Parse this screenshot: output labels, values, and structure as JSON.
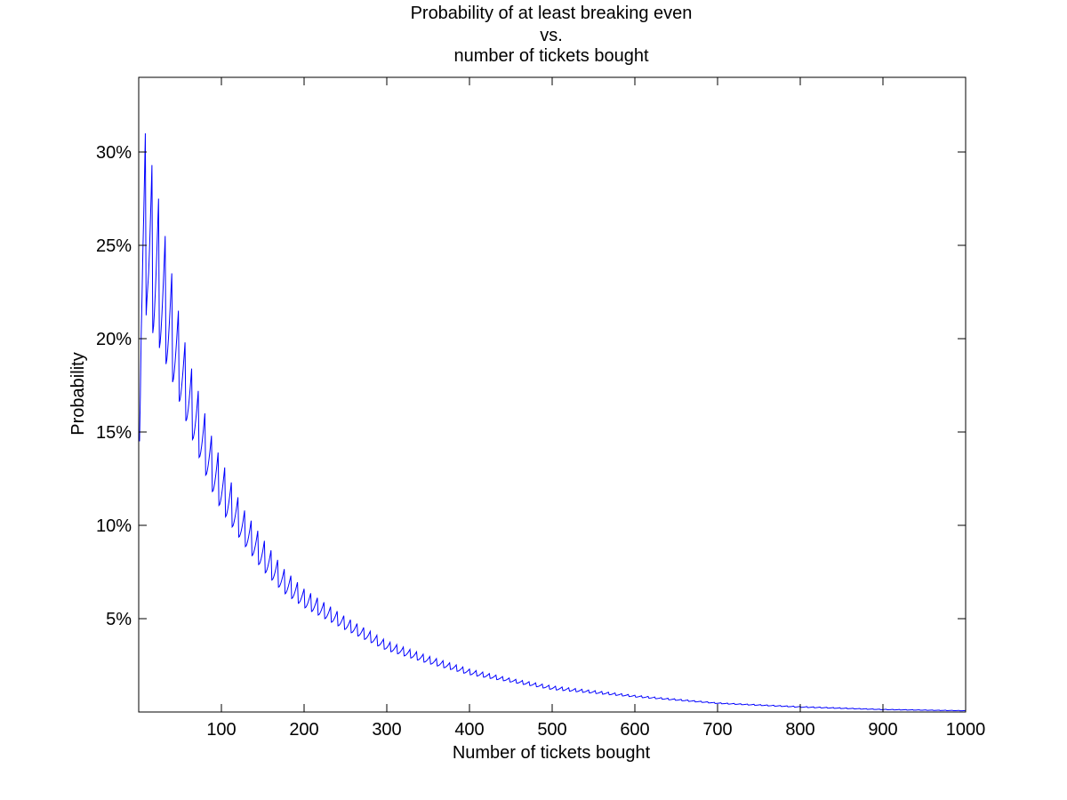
{
  "chart_data": {
    "type": "line",
    "title_lines": [
      "Probability of at least breaking even",
      "vs.",
      "number of tickets bought"
    ],
    "xlabel": "Number of tickets bought",
    "ylabel": "Probability",
    "xlim": [
      0,
      1000
    ],
    "ylim": [
      0,
      0.34
    ],
    "x_ticks": [
      100,
      200,
      300,
      400,
      500,
      600,
      700,
      800,
      900,
      1000
    ],
    "x_tick_labels": [
      "100",
      "200",
      "300",
      "400",
      "500",
      "600",
      "700",
      "800",
      "900",
      "1000"
    ],
    "y_ticks": [
      0.05,
      0.1,
      0.15,
      0.2,
      0.25,
      0.3
    ],
    "y_tick_labels": [
      "5%",
      "10%",
      "15%",
      "20%",
      "25%",
      "30%"
    ],
    "grid": false,
    "series": [
      {
        "color": "#0000ff",
        "x": [
          1,
          3,
          5,
          8,
          10,
          12,
          15,
          20,
          30,
          40,
          50,
          60,
          70,
          80,
          90,
          100,
          125,
          150,
          175,
          200,
          250,
          300,
          350,
          400,
          450,
          500,
          600,
          700,
          800,
          900,
          1000
        ],
        "y_upper": [
          0.15,
          0.27,
          0.3,
          0.31,
          0.33,
          0.3,
          0.295,
          0.285,
          0.26,
          0.235,
          0.21,
          0.19,
          0.175,
          0.16,
          0.145,
          0.135,
          0.11,
          0.093,
          0.077,
          0.066,
          0.051,
          0.038,
          0.03,
          0.023,
          0.018,
          0.014,
          0.009,
          0.005,
          0.003,
          0.0015,
          0.0008
        ],
        "y_lower": [
          0.145,
          0.19,
          0.205,
          0.21,
          0.215,
          0.21,
          0.205,
          0.2,
          0.19,
          0.178,
          0.165,
          0.152,
          0.14,
          0.128,
          0.117,
          0.108,
          0.091,
          0.076,
          0.064,
          0.056,
          0.044,
          0.033,
          0.026,
          0.02,
          0.016,
          0.012,
          0.008,
          0.0045,
          0.0025,
          0.0012,
          0.0006
        ],
        "oscillation_period": 8
      }
    ]
  }
}
